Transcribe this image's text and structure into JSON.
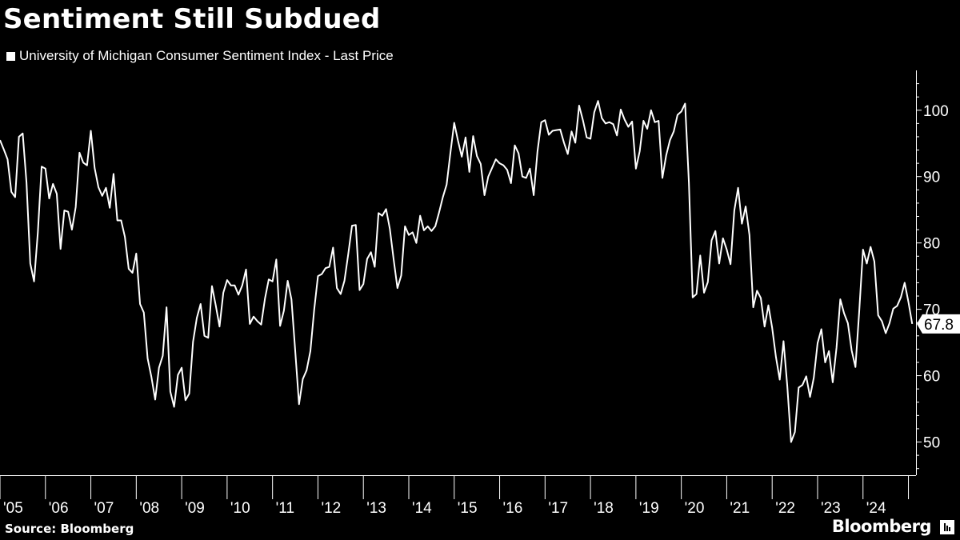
{
  "chart_data": {
    "type": "line",
    "title": "Sentiment Still Subdued",
    "series": [
      {
        "name": "University of Michigan Consumer Sentiment Index - Last Price",
        "color": "#ffffff",
        "start": "2005-01",
        "frequency": "monthly",
        "values": [
          95.5,
          94.1,
          92.6,
          87.7,
          86.9,
          96.0,
          96.5,
          89.1,
          76.9,
          74.2,
          81.6,
          91.5,
          91.2,
          86.7,
          88.9,
          87.4,
          79.1,
          84.9,
          84.7,
          82.0,
          85.4,
          93.6,
          92.1,
          91.7,
          96.9,
          91.3,
          88.4,
          87.1,
          88.3,
          85.3,
          90.4,
          83.4,
          83.4,
          80.9,
          76.1,
          75.5,
          78.4,
          70.8,
          69.5,
          62.6,
          59.8,
          56.4,
          61.2,
          63.0,
          70.3,
          57.6,
          55.3,
          60.1,
          61.2,
          56.3,
          57.3,
          65.1,
          68.7,
          70.8,
          66.0,
          65.7,
          73.5,
          70.6,
          67.4,
          72.5,
          74.4,
          73.6,
          73.6,
          72.2,
          73.6,
          76.0,
          67.8,
          68.9,
          68.2,
          67.7,
          71.6,
          74.5,
          74.2,
          77.5,
          67.5,
          69.8,
          74.3,
          71.5,
          63.7,
          55.7,
          59.5,
          60.8,
          63.7,
          69.9,
          75.0,
          75.3,
          76.2,
          76.4,
          79.3,
          73.2,
          72.3,
          74.3,
          78.3,
          82.6,
          82.7,
          72.9,
          73.8,
          77.6,
          78.6,
          76.4,
          84.5,
          84.1,
          85.1,
          82.1,
          77.5,
          73.2,
          75.1,
          82.5,
          81.2,
          81.6,
          80.0,
          84.1,
          81.9,
          82.5,
          81.8,
          82.5,
          84.6,
          86.9,
          88.8,
          93.6,
          98.1,
          95.4,
          93.0,
          95.9,
          90.7,
          96.1,
          93.1,
          91.9,
          87.2,
          90.0,
          91.3,
          92.6,
          92.0,
          91.7,
          91.0,
          89.0,
          94.7,
          93.5,
          90.0,
          89.8,
          91.2,
          87.2,
          93.8,
          98.2,
          98.5,
          96.3,
          96.9,
          97.0,
          97.1,
          95.1,
          93.4,
          96.8,
          95.1,
          100.7,
          98.5,
          95.9,
          95.7,
          99.7,
          101.4,
          98.8,
          98.0,
          98.2,
          97.9,
          96.2,
          100.1,
          98.6,
          97.5,
          98.3,
          91.2,
          93.8,
          98.4,
          97.2,
          100.0,
          98.2,
          98.4,
          89.8,
          93.2,
          95.5,
          96.8,
          99.3,
          99.8,
          101.0,
          89.1,
          71.8,
          72.3,
          78.1,
          72.5,
          74.1,
          80.4,
          81.8,
          76.9,
          80.7,
          79.0,
          76.8,
          84.9,
          88.3,
          82.9,
          85.5,
          81.2,
          70.3,
          72.8,
          71.7,
          67.4,
          70.6,
          67.2,
          62.8,
          59.4,
          65.2,
          58.4,
          50.0,
          51.5,
          58.2,
          58.6,
          59.9,
          56.8,
          59.7,
          64.9,
          67.0,
          62.0,
          63.7,
          59.0,
          64.2,
          71.5,
          69.4,
          67.9,
          63.8,
          61.3,
          69.7,
          79.0,
          76.9,
          79.4,
          77.2,
          69.1,
          68.2,
          66.4,
          67.9,
          70.1,
          70.5,
          71.8,
          74.0,
          71.1,
          67.8
        ]
      }
    ],
    "x_tick_labels": [
      "'05",
      "'06",
      "'07",
      "'08",
      "'09",
      "'10",
      "'11",
      "'12",
      "'13",
      "'14",
      "'15",
      "'16",
      "'17",
      "'18",
      "'19",
      "'20",
      "'21",
      "'22",
      "'23",
      "'24"
    ],
    "y_ticks": [
      50,
      60,
      70,
      80,
      90,
      100
    ],
    "ylim": [
      45,
      106
    ],
    "xlim": [
      "2005-01",
      "2025-03"
    ],
    "last_value_label": "67.8",
    "legend_position": "top-left",
    "grid": false,
    "xlabel": "",
    "ylabel": ""
  },
  "footer": {
    "source": "Source: Bloomberg",
    "brand": "Bloomberg"
  },
  "colors": {
    "background": "#000000",
    "line": "#ffffff",
    "text": "#ffffff"
  }
}
